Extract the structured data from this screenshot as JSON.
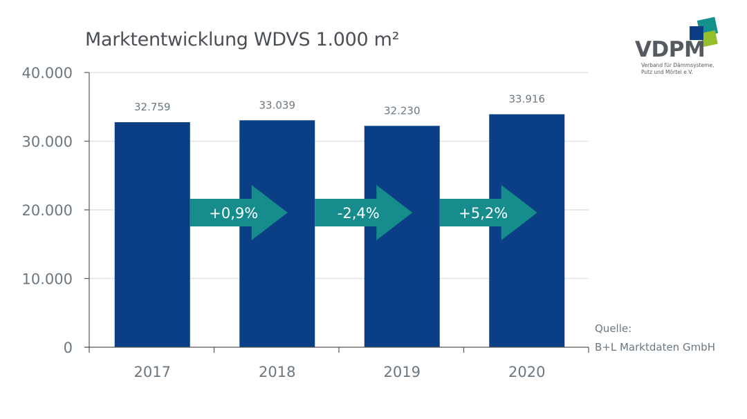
{
  "title": "Marktentwicklung WDVS 1.000 m²",
  "logo": {
    "name": "VDPM",
    "subtitle_line1": "Verband für Dämmsysteme,",
    "subtitle_line2": "Putz und Mörtel e.V.",
    "colors": {
      "dark_blue": "#0b3f85",
      "teal": "#14918f",
      "green": "#94bf2a"
    }
  },
  "source": {
    "label": "Quelle:",
    "value": "B+L Marktdaten GmbH"
  },
  "colors": {
    "bar": "#0b3f85",
    "arrow": "#168c8c",
    "axis_text": "#6b7780",
    "grid": "#e2e4e6",
    "axis_line": "#555555"
  },
  "chart_data": {
    "type": "bar",
    "title": "Marktentwicklung WDVS 1.000 m²",
    "xlabel": "",
    "ylabel": "",
    "categories": [
      "2017",
      "2018",
      "2019",
      "2020"
    ],
    "values": [
      32759,
      33039,
      32230,
      33916
    ],
    "value_labels": [
      "32.759",
      "33.039",
      "32.230",
      "33.916"
    ],
    "ylim": [
      0,
      40000
    ],
    "yticks": [
      0,
      10000,
      20000,
      30000,
      40000
    ],
    "ytick_labels": [
      "0",
      "10.000",
      "20.000",
      "30.000",
      "40.000"
    ],
    "grid": true,
    "legend": null,
    "annotations": [
      {
        "type": "arrow",
        "from": "2017",
        "to": "2018",
        "text": "+0,9%"
      },
      {
        "type": "arrow",
        "from": "2018",
        "to": "2019",
        "text": "-2,4%"
      },
      {
        "type": "arrow",
        "from": "2019",
        "to": "2020",
        "text": "+5,2%"
      }
    ],
    "source": "Quelle: B+L Marktdaten GmbH"
  }
}
